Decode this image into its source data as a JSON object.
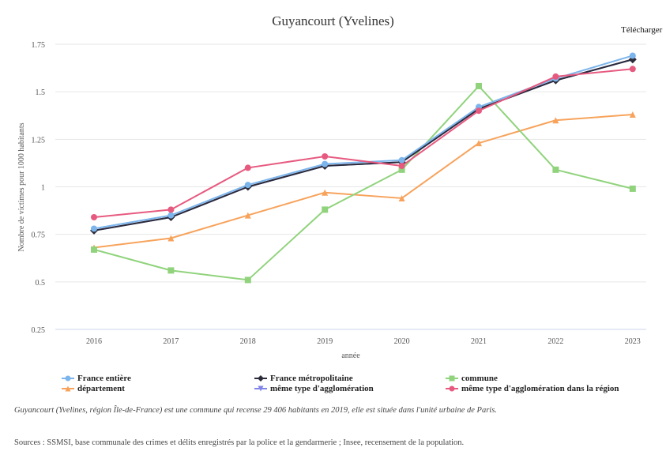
{
  "chart_data": {
    "type": "line",
    "title": "Guyancourt (Yvelines)",
    "xlabel": "année",
    "ylabel": "Nombre de victimes pour 1000 habitants",
    "categories": [
      "2016",
      "2017",
      "2018",
      "2019",
      "2020",
      "2021",
      "2022",
      "2023"
    ],
    "ylim": [
      0.25,
      1.75
    ],
    "yticks": [
      0.25,
      0.5,
      0.75,
      1,
      1.25,
      1.5,
      1.75
    ],
    "ytick_labels": [
      "0.25",
      "0.5",
      "0.75",
      "1",
      "1.25",
      "1.5",
      "1.75"
    ],
    "grid": true,
    "legend": "bottom",
    "series": [
      {
        "name": "France entière",
        "color": "#7cb5ec",
        "marker": "circle",
        "values": [
          0.78,
          0.85,
          1.01,
          1.12,
          1.14,
          1.42,
          1.57,
          1.69
        ]
      },
      {
        "name": "France métropolitaine",
        "color": "#2b2b3a",
        "marker": "diamond",
        "values": [
          0.77,
          0.84,
          1.0,
          1.11,
          1.13,
          1.41,
          1.56,
          1.67
        ]
      },
      {
        "name": "commune",
        "color": "#90d37c",
        "marker": "square",
        "values": [
          0.67,
          0.56,
          0.51,
          0.88,
          1.09,
          1.53,
          1.09,
          0.99
        ]
      },
      {
        "name": "département",
        "color": "#f7a35c",
        "marker": "triangle",
        "values": [
          0.68,
          0.73,
          0.85,
          0.97,
          0.94,
          1.23,
          1.35,
          1.38
        ]
      },
      {
        "name": "même type d'agglomération",
        "color": "#8085e9",
        "marker": "triangle-down",
        "values": [
          0.77,
          0.84,
          1.0,
          1.11,
          1.13,
          1.41,
          1.56,
          1.67
        ]
      },
      {
        "name": "même type d'agglomération dans la région",
        "color": "#e75a80",
        "marker": "circle",
        "values": [
          0.84,
          0.88,
          1.1,
          1.16,
          1.11,
          1.4,
          1.58,
          1.62
        ]
      }
    ]
  },
  "toolbar": {
    "download_label": "Télécharger"
  },
  "caption": "Guyancourt (Yvelines, région Île-de-France) est une commune qui recense 29 406 habitants en 2019, elle est située dans l'unité urbaine de Paris.",
  "sources": "Sources : SSMSI, base communale des crimes et délits enregistrés par la police et la gendarmerie ; Insee, recensement de la population."
}
